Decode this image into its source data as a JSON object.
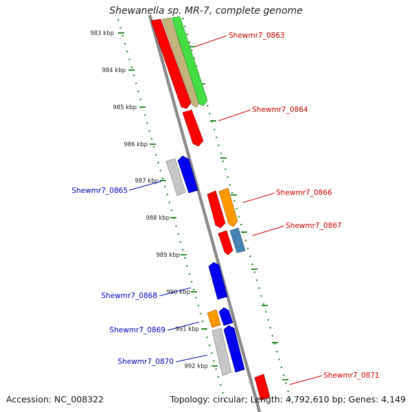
{
  "title": "Shewanella sp. MR-7, complete genome",
  "footer": {
    "accession": "Accession: NC_008322",
    "stats": "Topology: circular; Length: 4,792,610 bp; Genes: 4,149"
  },
  "colors": {
    "backbone": "#8a8a8a",
    "tick_dots": "#2e8b2e",
    "label_red": "#cc0000",
    "label_blue": "#0000bb"
  },
  "scale_labels": [
    "983 kbp",
    "984 kbp",
    "985 kbp",
    "986 kbp",
    "987 kbp",
    "988 kbp",
    "989 kbp",
    "990 kbp",
    "991 kbp",
    "992 kbp"
  ],
  "gene_labels": [
    {
      "text": "Shewmr7_0863",
      "color": "red"
    },
    {
      "text": "Shewmr7_0864",
      "color": "red"
    },
    {
      "text": "Shewmr7_0865",
      "color": "blue"
    },
    {
      "text": "Shewmr7_0866",
      "color": "red"
    },
    {
      "text": "Shewmr7_0867",
      "color": "red"
    },
    {
      "text": "Shewmr7_0868",
      "color": "blue"
    },
    {
      "text": "Shewmr7_0869",
      "color": "blue"
    },
    {
      "text": "Shewmr7_0870",
      "color": "blue"
    },
    {
      "text": "Shewmr7_0871",
      "color": "red"
    }
  ]
}
